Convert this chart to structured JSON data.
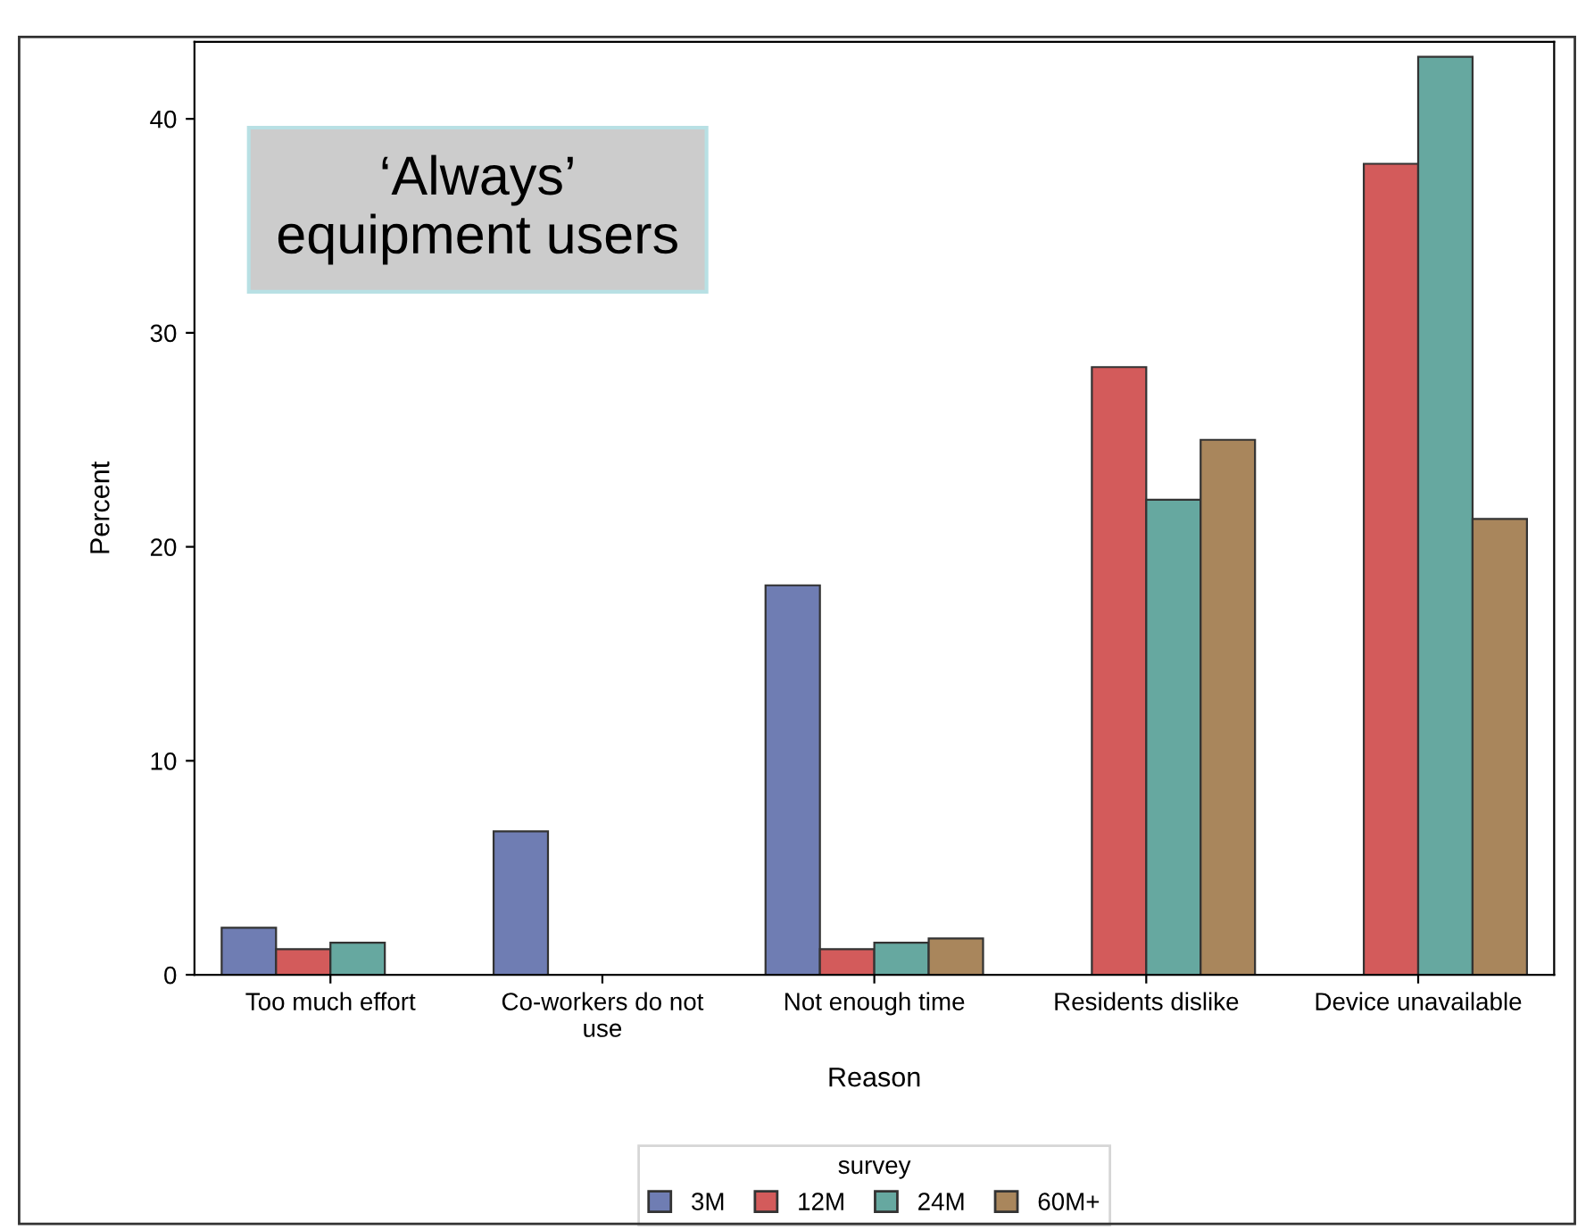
{
  "chart_data": {
    "type": "bar",
    "categories": [
      "Too much effort",
      "Co-workers do not\nuse",
      "Not enough time",
      "Residents dislike",
      "Device unavailable"
    ],
    "series": [
      {
        "name": "3M",
        "color": "#6f7db3",
        "values": [
          2.2,
          6.7,
          18.2,
          null,
          null
        ]
      },
      {
        "name": "12M",
        "color": "#d35b5b",
        "values": [
          1.2,
          null,
          1.2,
          28.4,
          37.9
        ]
      },
      {
        "name": "24M",
        "color": "#66a8a0",
        "values": [
          1.5,
          null,
          1.5,
          22.2,
          42.9
        ]
      },
      {
        "name": "60M+",
        "color": "#a9865c",
        "values": [
          null,
          null,
          1.7,
          25.0,
          21.3
        ]
      }
    ],
    "xlabel": "Reason",
    "ylabel": "Percent",
    "legend_title": "survey",
    "ylim": [
      0,
      43.6
    ],
    "yticks": [
      0,
      10,
      20,
      30,
      40
    ],
    "annotations": [
      "‘Always’\nequipment users"
    ],
    "legend": "bottom",
    "grid": false
  }
}
